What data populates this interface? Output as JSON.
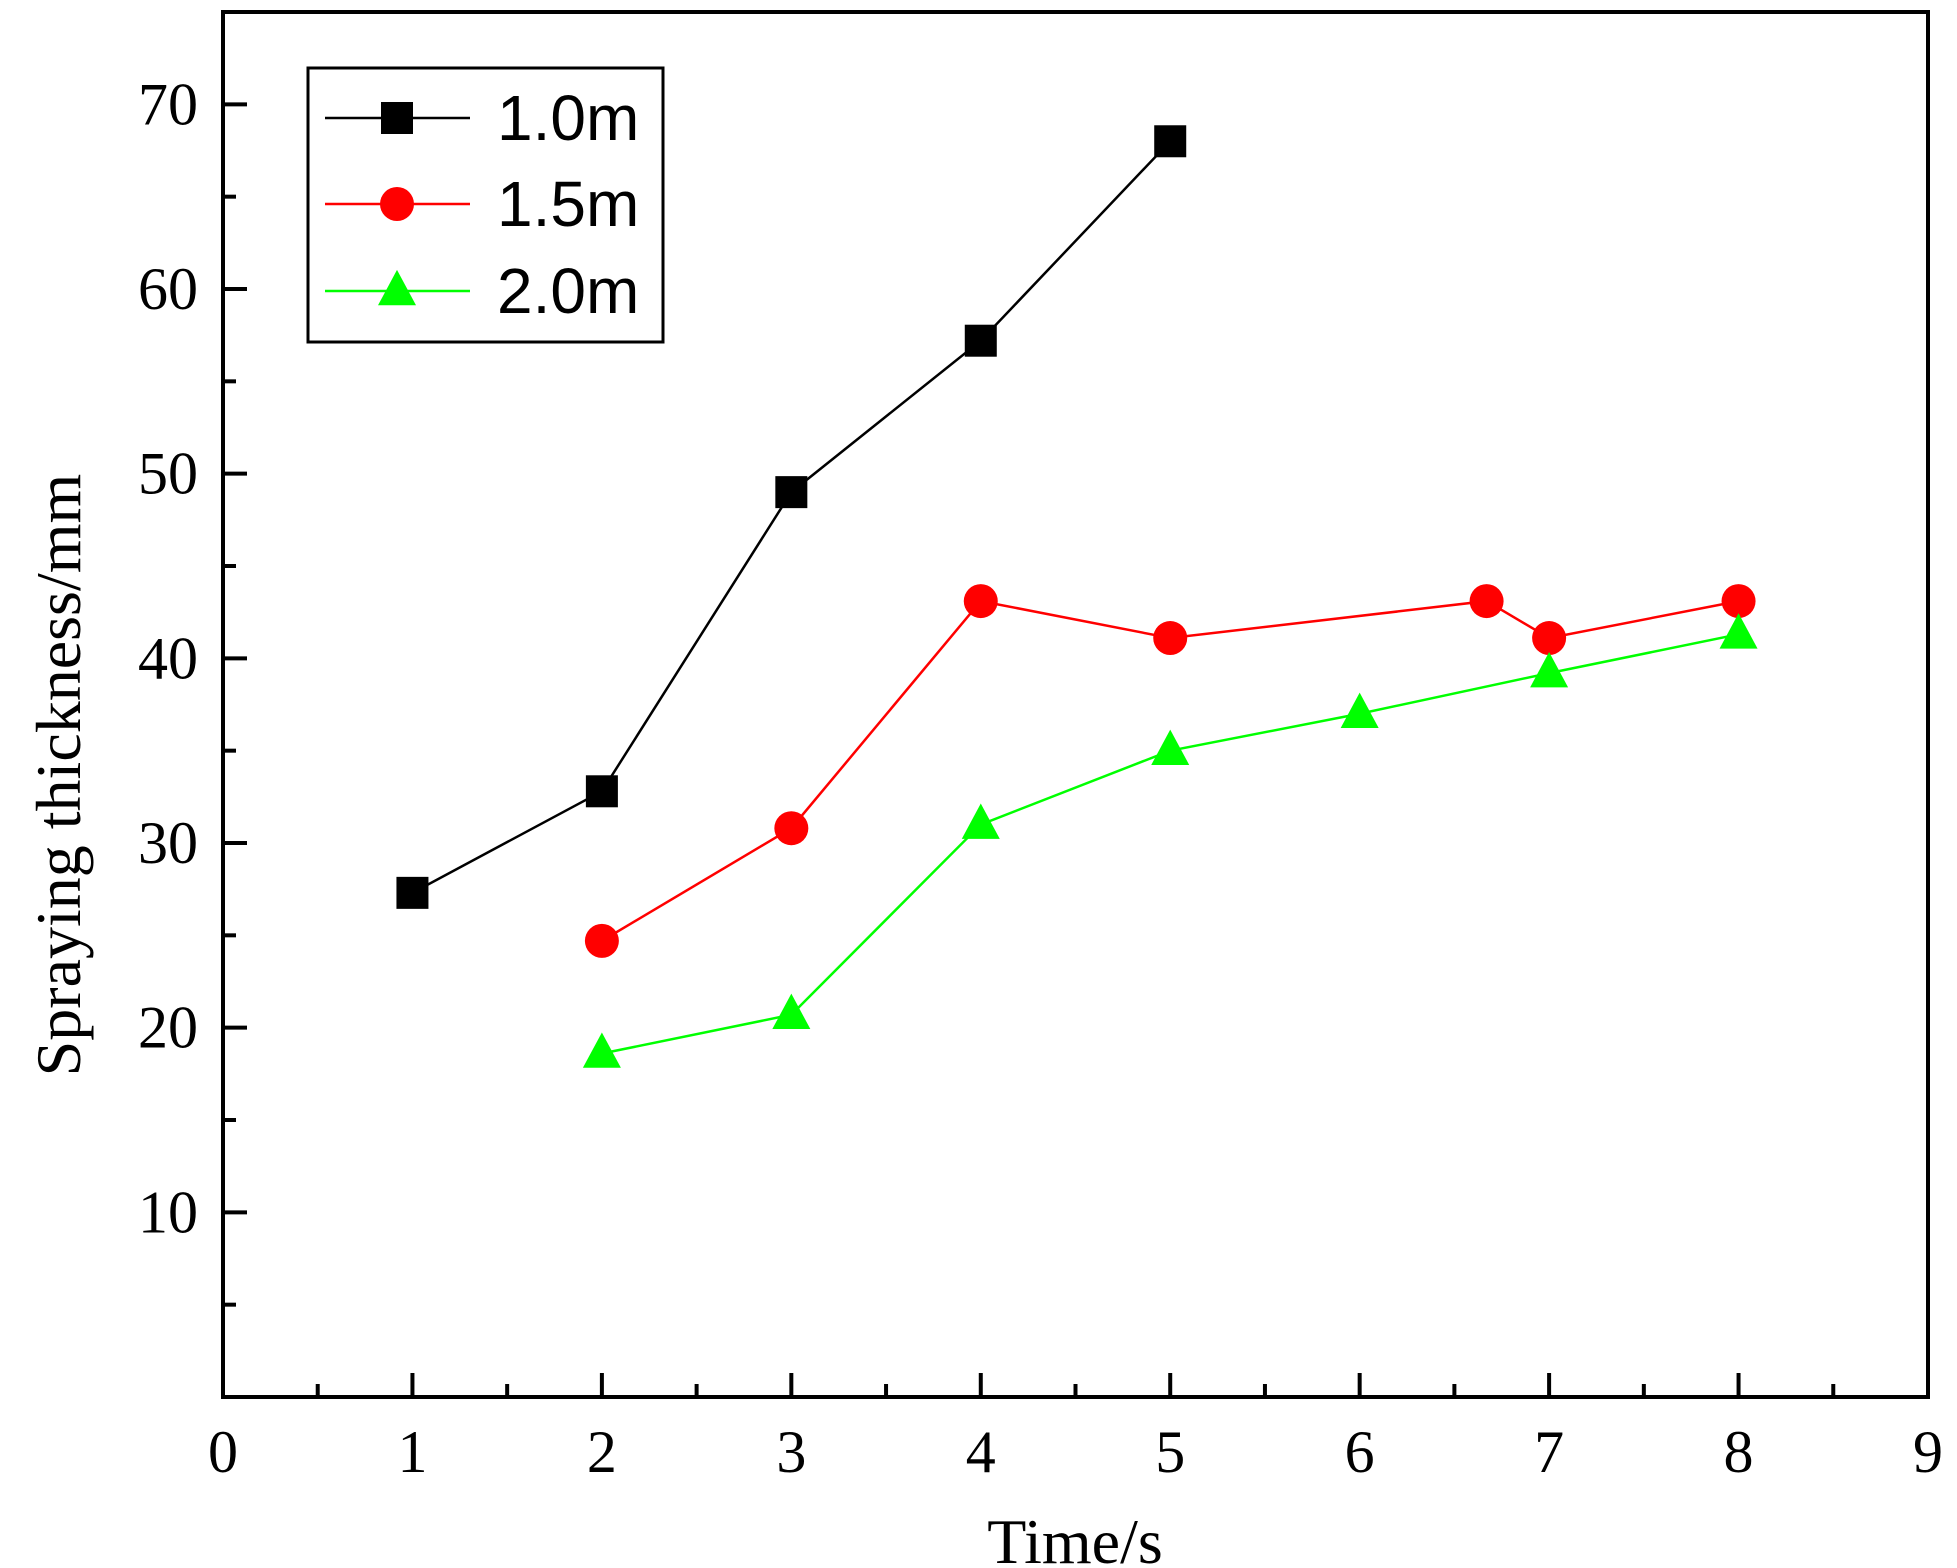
{
  "chart_data": {
    "type": "line",
    "title": "",
    "xlabel": "Time/s",
    "ylabel": "Spraying  thickness/mm",
    "xlim": [
      0,
      9
    ],
    "ylim": [
      0,
      75
    ],
    "xticks": [
      0,
      1,
      2,
      3,
      4,
      5,
      6,
      7,
      8,
      9
    ],
    "xtick_labels": [
      "0",
      "1",
      "2",
      "3",
      "4",
      "5",
      "6",
      "7",
      "8",
      "9"
    ],
    "yticks": [
      10,
      20,
      30,
      40,
      50,
      60,
      70
    ],
    "ytick_labels": [
      "10",
      "20",
      "30",
      "40",
      "50",
      "60",
      "70"
    ],
    "x_minor_step": 0.5,
    "y_minor_step": 5,
    "grid": false,
    "legend_position": "top-left",
    "series": [
      {
        "name": "1.0m",
        "color": "#000000",
        "marker": "square",
        "x": [
          1,
          2,
          3,
          4,
          5
        ],
        "y": [
          27.3,
          32.8,
          49.0,
          57.2,
          68.0
        ]
      },
      {
        "name": "1.5m",
        "color": "#ff0000",
        "marker": "circle",
        "x": [
          2,
          3,
          4,
          5,
          6.67,
          7,
          8
        ],
        "y": [
          24.7,
          30.8,
          43.1,
          41.1,
          43.1,
          41.1,
          43.1
        ]
      },
      {
        "name": "2.0m",
        "color": "#00ff00",
        "marker": "triangle",
        "x": [
          2,
          3,
          4,
          5,
          6,
          7,
          8
        ],
        "y": [
          18.6,
          20.7,
          31.0,
          35.0,
          37.0,
          39.2,
          41.3
        ]
      }
    ]
  }
}
